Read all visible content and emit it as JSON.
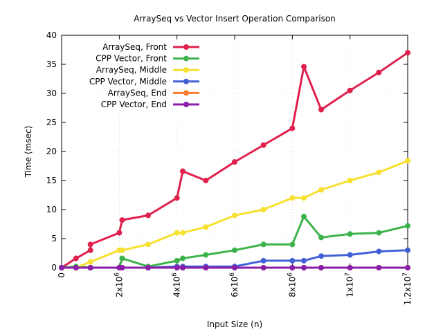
{
  "chart_data": {
    "type": "line",
    "title": "ArraySeq vs Vector Insert Operation Comparison",
    "xlabel": "Input Size (n)",
    "ylabel": "Time (msec)",
    "xlim": [
      0,
      12000000
    ],
    "ylim": [
      0,
      40
    ],
    "grid": true,
    "legend_position": "top-left",
    "x_tick_values": [
      0,
      2000000,
      4000000,
      6000000,
      8000000,
      10000000,
      12000000
    ],
    "x_tick_labels": [
      {
        "base": "0",
        "exp": ""
      },
      {
        "base": "2x10",
        "exp": "6"
      },
      {
        "base": "4x10",
        "exp": "6"
      },
      {
        "base": "6x10",
        "exp": "6"
      },
      {
        "base": "8x10",
        "exp": "6"
      },
      {
        "base": "1x10",
        "exp": "7"
      },
      {
        "base": "1.2x10",
        "exp": "7"
      }
    ],
    "y_tick_values": [
      0,
      5,
      10,
      15,
      20,
      25,
      30,
      35,
      40
    ],
    "y_tick_labels": [
      "0",
      "5",
      "10",
      "15",
      "20",
      "25",
      "30",
      "35",
      "40"
    ],
    "series": [
      {
        "name": "ArraySeq, Front",
        "color": "#e0204c",
        "points": [
          [
            0,
            0
          ],
          [
            500000,
            1.6
          ],
          [
            1000000,
            3
          ],
          [
            1000000,
            4
          ],
          [
            2000000,
            6
          ],
          [
            2100000,
            8.2
          ],
          [
            3000000,
            9
          ],
          [
            4000000,
            12
          ],
          [
            4200000,
            16.6
          ],
          [
            5000000,
            15
          ],
          [
            6000000,
            18.2
          ],
          [
            7000000,
            21.1
          ],
          [
            8000000,
            24
          ],
          [
            8400000,
            34.6
          ],
          [
            9000000,
            27.2
          ],
          [
            10000000,
            30.5
          ],
          [
            11000000,
            33.6
          ],
          [
            12000000,
            37
          ]
        ]
      },
      {
        "name": "CPP Vector, Front",
        "color": "#3cb34a",
        "points": [
          [
            0,
            0
          ],
          [
            500000,
            0.2
          ],
          [
            1000000,
            0
          ],
          [
            1000000,
            0
          ],
          [
            2000000,
            0
          ],
          [
            2100000,
            1.6
          ],
          [
            3000000,
            0.2
          ],
          [
            4000000,
            1.2
          ],
          [
            4200000,
            1.6
          ],
          [
            5000000,
            2.2
          ],
          [
            6000000,
            3
          ],
          [
            7000000,
            4
          ],
          [
            8000000,
            4
          ],
          [
            8400000,
            8.8
          ],
          [
            9000000,
            5.2
          ],
          [
            10000000,
            5.8
          ],
          [
            11000000,
            6
          ],
          [
            12000000,
            7.2
          ]
        ]
      },
      {
        "name": "ArraySeq, Middle",
        "color": "#f7e030",
        "points": [
          [
            0,
            0
          ],
          [
            500000,
            0
          ],
          [
            1000000,
            1
          ],
          [
            2000000,
            3
          ],
          [
            2100000,
            3
          ],
          [
            3000000,
            4
          ],
          [
            4000000,
            6
          ],
          [
            4200000,
            6
          ],
          [
            5000000,
            7
          ],
          [
            6000000,
            9
          ],
          [
            7000000,
            10
          ],
          [
            8000000,
            12
          ],
          [
            8400000,
            12
          ],
          [
            9000000,
            13.4
          ],
          [
            10000000,
            15
          ],
          [
            11000000,
            16.4
          ],
          [
            12000000,
            18.4
          ]
        ]
      },
      {
        "name": "CPP Vector, Middle",
        "color": "#4160d6",
        "points": [
          [
            0,
            0
          ],
          [
            500000,
            0
          ],
          [
            1000000,
            0
          ],
          [
            2000000,
            0
          ],
          [
            2100000,
            0
          ],
          [
            3000000,
            0
          ],
          [
            4000000,
            0.2
          ],
          [
            4200000,
            0.2
          ],
          [
            5000000,
            0.2
          ],
          [
            6000000,
            0.2
          ],
          [
            7000000,
            1.2
          ],
          [
            8000000,
            1.2
          ],
          [
            8400000,
            1.2
          ],
          [
            9000000,
            2
          ],
          [
            10000000,
            2.2
          ],
          [
            11000000,
            2.8
          ],
          [
            12000000,
            3
          ]
        ]
      },
      {
        "name": "ArraySeq, End",
        "color": "#f47c30",
        "points": [
          [
            0,
            0
          ],
          [
            500000,
            0
          ],
          [
            1000000,
            0
          ],
          [
            2000000,
            0
          ],
          [
            2100000,
            0
          ],
          [
            3000000,
            0
          ],
          [
            4000000,
            0
          ],
          [
            4200000,
            0
          ],
          [
            5000000,
            0
          ],
          [
            6000000,
            0
          ],
          [
            7000000,
            0
          ],
          [
            8000000,
            0
          ],
          [
            8400000,
            0
          ],
          [
            9000000,
            0
          ],
          [
            10000000,
            0
          ],
          [
            11000000,
            0
          ],
          [
            12000000,
            0
          ]
        ]
      },
      {
        "name": "CPP Vector, End",
        "color": "#8a1ea8",
        "points": [
          [
            0,
            0
          ],
          [
            500000,
            0
          ],
          [
            1000000,
            0
          ],
          [
            2000000,
            0
          ],
          [
            2100000,
            0
          ],
          [
            3000000,
            0
          ],
          [
            4000000,
            0
          ],
          [
            4200000,
            0
          ],
          [
            5000000,
            0
          ],
          [
            6000000,
            0
          ],
          [
            7000000,
            0
          ],
          [
            8000000,
            0
          ],
          [
            8400000,
            0
          ],
          [
            9000000,
            0
          ],
          [
            10000000,
            0
          ],
          [
            11000000,
            0
          ],
          [
            12000000,
            0
          ]
        ]
      }
    ]
  }
}
